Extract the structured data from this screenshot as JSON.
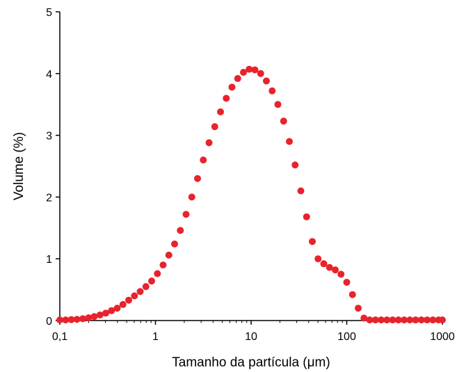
{
  "chart_data": {
    "type": "scatter",
    "title": "",
    "xlabel": "Tamanho da partícula (μm)",
    "ylabel": "Volume (%)",
    "xscale": "log",
    "xlim": [
      0.1,
      1000
    ],
    "ylim": [
      0,
      5
    ],
    "x_ticks": [
      {
        "value": 0.1,
        "label": "0,1"
      },
      {
        "value": 1,
        "label": "1"
      },
      {
        "value": 10,
        "label": "10"
      },
      {
        "value": 100,
        "label": "100"
      },
      {
        "value": 1000,
        "label": "1000"
      }
    ],
    "y_ticks": [
      {
        "value": 0,
        "label": "0"
      },
      {
        "value": 1,
        "label": "1"
      },
      {
        "value": 2,
        "label": "2"
      },
      {
        "value": 3,
        "label": "3"
      },
      {
        "value": 4,
        "label": "4"
      },
      {
        "value": 5,
        "label": "5"
      }
    ],
    "grid": false,
    "legend": "none",
    "marker_color": "#e8232b",
    "series": [
      {
        "x": [
          0.1,
          0.115,
          0.132,
          0.151,
          0.174,
          0.2,
          0.229,
          0.263,
          0.302,
          0.347,
          0.398,
          0.457,
          0.525,
          0.603,
          0.692,
          0.794,
          0.912,
          1.047,
          1.202,
          1.38,
          1.585,
          1.82,
          2.089,
          2.399,
          2.754,
          3.162,
          3.631,
          4.169,
          4.786,
          5.495,
          6.31,
          7.244,
          8.318,
          9.55,
          10.96,
          12.59,
          14.45,
          16.6,
          19.05,
          21.88,
          25.12,
          28.84,
          33.11,
          38.02,
          43.65,
          50.12,
          57.54,
          66.07,
          75.86,
          87.1,
          100,
          114.8,
          131.8,
          151.4,
          173.8,
          199.5,
          229.1,
          263,
          302,
          346.7,
          398.1,
          457.1,
          524.8,
          602.6,
          691.8,
          794.3,
          912,
          1000
        ],
        "y": [
          0.01,
          0.01,
          0.015,
          0.02,
          0.03,
          0.045,
          0.065,
          0.09,
          0.12,
          0.16,
          0.2,
          0.26,
          0.33,
          0.4,
          0.47,
          0.55,
          0.64,
          0.76,
          0.9,
          1.06,
          1.24,
          1.46,
          1.72,
          2.0,
          2.3,
          2.6,
          2.88,
          3.14,
          3.38,
          3.6,
          3.78,
          3.92,
          4.02,
          4.07,
          4.06,
          4.0,
          3.88,
          3.72,
          3.5,
          3.23,
          2.9,
          2.52,
          2.1,
          1.68,
          1.28,
          1.0,
          0.92,
          0.86,
          0.82,
          0.75,
          0.62,
          0.42,
          0.2,
          0.04,
          0.01,
          0.01,
          0.01,
          0.01,
          0.01,
          0.01,
          0.01,
          0.01,
          0.01,
          0.01,
          0.01,
          0.01,
          0.01,
          0.01
        ]
      }
    ]
  }
}
